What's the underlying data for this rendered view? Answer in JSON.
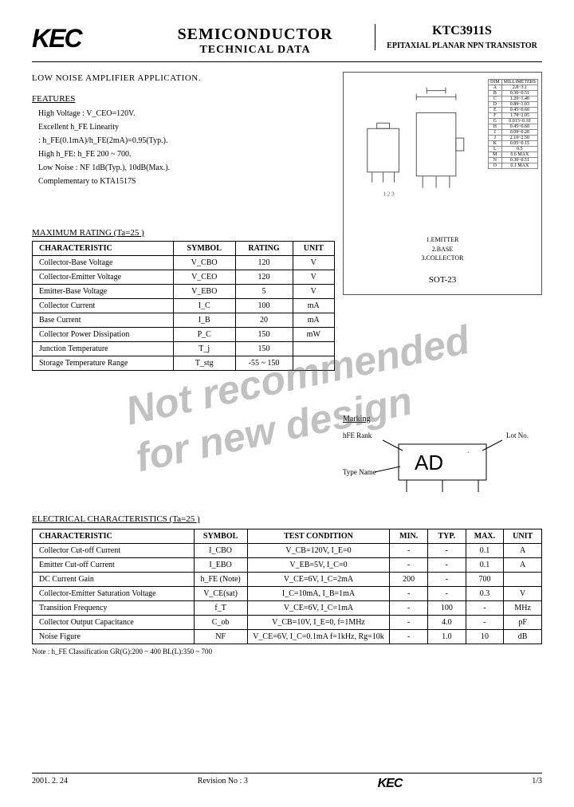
{
  "header": {
    "company": "KEC",
    "title1": "SEMICONDUCTOR",
    "title2": "TECHNICAL DATA",
    "part": "KTC3911S",
    "desc": "EPITAXIAL PLANAR NPN TRANSISTOR"
  },
  "application": "LOW NOISE AMPLIFIER APPLICATION.",
  "features": {
    "title": "FEATURES",
    "items": [
      "High Voltage : V_CEO=120V.",
      "Excellent h_FE Linearity",
      "  : h_FE(0.1mA)/h_FE(2mA)=0.95(Typ.).",
      "High h_FE: h_FE  200 ~ 700.",
      "Low Noise : NF  1dB(Typ.),  10dB(Max.).",
      "Complementary to KTA1517S"
    ]
  },
  "package": {
    "name": "SOT-23",
    "pins": [
      "1.EMITTER",
      "2.BASE",
      "3.COLLECTOR"
    ],
    "dim_header": [
      "DIM",
      "MILLIMETERS"
    ],
    "dims": [
      [
        "A",
        "2.8~3.1"
      ],
      [
        "B",
        "0.30~0.51"
      ],
      [
        "C",
        "1.20~1.40"
      ],
      [
        "D",
        "0.89~1.03"
      ],
      [
        "E",
        "0.45~0.60"
      ],
      [
        "F",
        "1.78~2.05"
      ],
      [
        "G",
        "0.013~0.10"
      ],
      [
        "H",
        "0.45~0.60"
      ],
      [
        "I",
        "0.09~0.20"
      ],
      [
        "J",
        "2.10~2.50"
      ],
      [
        "K",
        "0.05~0.15"
      ],
      [
        "L",
        "0.5"
      ],
      [
        "M",
        "0.6 MAX"
      ],
      [
        "N",
        "0.30~0.51"
      ],
      [
        "O",
        "0.1 MAX"
      ]
    ]
  },
  "max_rating": {
    "title": "MAXIMUM RATING (Ta=25    )",
    "headers": [
      "CHARACTERISTIC",
      "SYMBOL",
      "RATING",
      "UNIT"
    ],
    "rows": [
      [
        "Collector-Base Voltage",
        "V_CBO",
        "120",
        "V"
      ],
      [
        "Collector-Emitter Voltage",
        "V_CEO",
        "120",
        "V"
      ],
      [
        "Emitter-Base Voltage",
        "V_EBO",
        "5",
        "V"
      ],
      [
        "Collector Current",
        "I_C",
        "100",
        "mA"
      ],
      [
        "Base Current",
        "I_B",
        "20",
        "mA"
      ],
      [
        "Collector Power Dissipation",
        "P_C",
        "150",
        "mW"
      ],
      [
        "Junction Temperature",
        "T_j",
        "150",
        ""
      ],
      [
        "Storage Temperature Range",
        "T_stg",
        "-55 ~ 150",
        ""
      ]
    ]
  },
  "marking": {
    "title": "Marking",
    "hfe_rank": "h_FE Rank",
    "lot_no": "Lot No.",
    "type_name": "Type Name",
    "code": "AD"
  },
  "elec": {
    "title": "ELECTRICAL CHARACTERISTICS (Ta=25    )",
    "headers": [
      "CHARACTERISTIC",
      "SYMBOL",
      "TEST CONDITION",
      "MIN.",
      "TYP.",
      "MAX.",
      "UNIT"
    ],
    "rows": [
      [
        "Collector Cut-off Current",
        "I_CBO",
        "V_CB=120V,  I_E=0",
        "-",
        "-",
        "0.1",
        "A"
      ],
      [
        "Emitter Cut-off Current",
        "I_EBO",
        "V_EB=5V,  I_C=0",
        "-",
        "-",
        "0.1",
        "A"
      ],
      [
        "DC Current Gain",
        "h_FE (Note)",
        "V_CE=6V,  I_C=2mA",
        "200",
        "-",
        "700",
        ""
      ],
      [
        "Collector-Emitter Saturation Voltage",
        "V_CE(sat)",
        "I_C=10mA, I_B=1mA",
        "-",
        "-",
        "0.3",
        "V"
      ],
      [
        "Transition Frequency",
        "f_T",
        "V_CE=6V,  I_C=1mA",
        "-",
        "100",
        "-",
        "MHz"
      ],
      [
        "Collector Output Capacitance",
        "C_ob",
        "V_CB=10V,  I_E=0,  f=1MHz",
        "-",
        "4.0",
        "-",
        "pF"
      ],
      [
        "Noise Figure",
        "NF",
        "V_CE=6V,  I_C=0.1mA f=1kHz, Rg=10k",
        "-",
        "1.0",
        "10",
        "dB"
      ]
    ],
    "note": "Note : h_FE  Classification   GR(G):200 ~ 400    BL(L):350 ~ 700"
  },
  "footer": {
    "date": "2001. 2. 24",
    "rev": "Revision No : 3",
    "page": "1/3"
  },
  "watermark": "Not recommended\n   for new design",
  "colors": {
    "border": "#000000",
    "watermark": "rgba(100,100,100,0.4)"
  }
}
